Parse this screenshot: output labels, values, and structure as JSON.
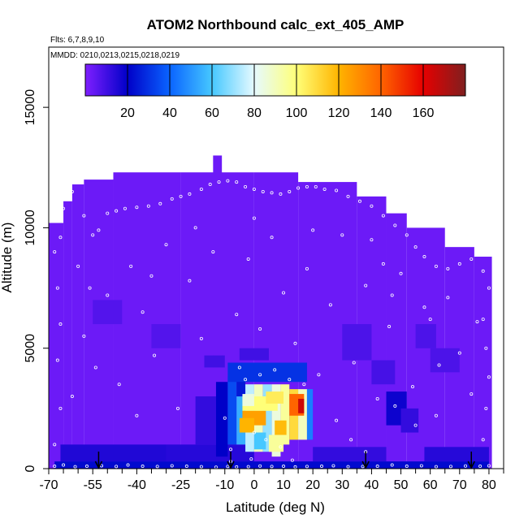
{
  "chart_data": {
    "type": "heatmap",
    "title": "ATOM2 Northbound calc_ext_405_AMP",
    "flights_note": "Flts: 6,7,8,9,10",
    "dates_note": "MMDD: 0210,0213,0215,0218,0219",
    "xlabel": "Latitude (deg N)",
    "ylabel": "Altitude (m)",
    "xlim": [
      -70,
      85
    ],
    "ylim": [
      0,
      17500
    ],
    "x_ticks": [
      -70,
      -55,
      -40,
      -25,
      -10,
      0,
      10,
      20,
      30,
      40,
      50,
      60,
      70,
      80
    ],
    "x_ticks_unlabeled": [
      -65,
      -60,
      -50,
      -45,
      -35,
      -30,
      -20,
      -15,
      -5,
      5,
      15,
      25,
      35,
      45,
      55,
      65,
      75,
      85
    ],
    "y_ticks": [
      0,
      5000,
      10000,
      15000
    ],
    "colorbar": {
      "min": 0,
      "max": 180,
      "ticks": [
        20,
        40,
        60,
        80,
        100,
        120,
        140,
        160
      ],
      "colors": [
        "#7f1fff",
        "#0000c8",
        "#0a64ff",
        "#46c8ff",
        "#e6faff",
        "#ffff78",
        "#ffb400",
        "#ff6400",
        "#e60000",
        "#7f1f1f"
      ]
    },
    "background_value": 3,
    "envelope": [
      {
        "lat": [
          -70,
          -65
        ],
        "top": 10200
      },
      {
        "lat": [
          -65,
          -62
        ],
        "top": 11100
      },
      {
        "lat": [
          -62,
          -58
        ],
        "top": 11800
      },
      {
        "lat": [
          -58,
          -48
        ],
        "top": 12000
      },
      {
        "lat": [
          -48,
          -25
        ],
        "top": 12300
      },
      {
        "lat": [
          -25,
          0
        ],
        "top": 12300
      },
      {
        "lat": [
          0,
          15
        ],
        "top": 12300
      },
      {
        "lat": [
          15,
          35
        ],
        "top": 11900
      },
      {
        "lat": [
          35,
          45
        ],
        "top": 11300
      },
      {
        "lat": [
          45,
          52
        ],
        "top": 10600
      },
      {
        "lat": [
          52,
          65
        ],
        "top": 10000
      },
      {
        "lat": [
          65,
          75
        ],
        "top": 9200
      },
      {
        "lat": [
          75,
          81
        ],
        "top": 8800
      }
    ],
    "summit": {
      "lat": [
        -14,
        -11
      ],
      "top": 13000
    },
    "cells": [
      {
        "lat": [
          -68,
          80
        ],
        "alt": [
          0,
          300
        ],
        "value": 22
      },
      {
        "lat": [
          -66,
          -30
        ],
        "alt": [
          300,
          1000
        ],
        "value": 15
      },
      {
        "lat": [
          -30,
          0
        ],
        "alt": [
          300,
          1000
        ],
        "value": 14
      },
      {
        "lat": [
          20,
          45
        ],
        "alt": [
          300,
          900
        ],
        "value": 12
      },
      {
        "lat": [
          58,
          80
        ],
        "alt": [
          300,
          900
        ],
        "value": 14
      },
      {
        "lat": [
          -20,
          -13
        ],
        "alt": [
          1000,
          3000
        ],
        "value": 12
      },
      {
        "lat": [
          -13,
          -9
        ],
        "alt": [
          500,
          3600
        ],
        "value": 20
      },
      {
        "lat": [
          -9,
          -6
        ],
        "alt": [
          1000,
          3800
        ],
        "value": 35
      },
      {
        "lat": [
          -6,
          -3
        ],
        "alt": [
          1000,
          3000
        ],
        "value": 55
      },
      {
        "lat": [
          -6,
          -3
        ],
        "alt": [
          3000,
          3800
        ],
        "value": 25
      },
      {
        "lat": [
          -3,
          0
        ],
        "alt": [
          700,
          3500
        ],
        "value": 75
      },
      {
        "lat": [
          0,
          3
        ],
        "alt": [
          700,
          3500
        ],
        "value": 90
      },
      {
        "lat": [
          3,
          6
        ],
        "alt": [
          700,
          3500
        ],
        "value": 70
      },
      {
        "lat": [
          6,
          9
        ],
        "alt": [
          500,
          3500
        ],
        "value": 85
      },
      {
        "lat": [
          9,
          12
        ],
        "alt": [
          1000,
          3500
        ],
        "value": 95
      },
      {
        "lat": [
          12,
          15
        ],
        "alt": [
          1200,
          3300
        ],
        "value": 110
      },
      {
        "lat": [
          15,
          18
        ],
        "alt": [
          1200,
          3300
        ],
        "value": 90
      },
      {
        "lat": [
          18,
          20
        ],
        "alt": [
          1200,
          3300
        ],
        "value": 45
      },
      {
        "lat": [
          -9,
          18
        ],
        "alt": [
          3600,
          4400
        ],
        "value": 30
      },
      {
        "lat": [
          -4,
          8
        ],
        "alt": [
          2400,
          3000
        ],
        "value": 100
      },
      {
        "lat": [
          -4,
          4
        ],
        "alt": [
          1800,
          2400
        ],
        "value": 125
      },
      {
        "lat": [
          4,
          10
        ],
        "alt": [
          2700,
          3200
        ],
        "value": 105
      },
      {
        "lat": [
          12,
          17
        ],
        "alt": [
          2200,
          3100
        ],
        "value": 140
      },
      {
        "lat": [
          15,
          17
        ],
        "alt": [
          2300,
          2900
        ],
        "value": 165
      },
      {
        "lat": [
          7,
          11
        ],
        "alt": [
          1400,
          2000
        ],
        "value": 118
      },
      {
        "lat": [
          5,
          10
        ],
        "alt": [
          700,
          1400
        ],
        "value": 95
      },
      {
        "lat": [
          -5,
          0
        ],
        "alt": [
          1500,
          2100
        ],
        "value": 120
      },
      {
        "lat": [
          0,
          4
        ],
        "alt": [
          800,
          1500
        ],
        "value": 60
      },
      {
        "lat": [
          -4,
          0
        ],
        "alt": [
          2600,
          3100
        ],
        "value": 85
      },
      {
        "lat": [
          -17,
          -10
        ],
        "alt": [
          4200,
          4700
        ],
        "value": 10
      },
      {
        "lat": [
          -5,
          5
        ],
        "alt": [
          4500,
          5000
        ],
        "value": 10
      },
      {
        "lat": [
          40,
          48
        ],
        "alt": [
          3500,
          4500
        ],
        "value": 9
      },
      {
        "lat": [
          45,
          52
        ],
        "alt": [
          1800,
          3200
        ],
        "value": 18
      },
      {
        "lat": [
          50,
          56
        ],
        "alt": [
          1500,
          2500
        ],
        "value": 12
      },
      {
        "lat": [
          60,
          70
        ],
        "alt": [
          4000,
          5000
        ],
        "value": 8
      },
      {
        "lat": [
          55,
          62
        ],
        "alt": [
          5000,
          6000
        ],
        "value": 8
      },
      {
        "lat": [
          30,
          40
        ],
        "alt": [
          4500,
          6000
        ],
        "value": 8
      },
      {
        "lat": [
          -35,
          -25
        ],
        "alt": [
          5000,
          6000
        ],
        "value": 7
      },
      {
        "lat": [
          -55,
          -45
        ],
        "alt": [
          6000,
          7000
        ],
        "value": 7
      }
    ],
    "sample_points": [
      [
        -68,
        100
      ],
      [
        -65,
        150
      ],
      [
        -61,
        80
      ],
      [
        -57,
        100
      ],
      [
        -52,
        120
      ],
      [
        -47,
        90
      ],
      [
        -43,
        150
      ],
      [
        -38,
        100
      ],
      [
        -33,
        90
      ],
      [
        -28,
        120
      ],
      [
        -23,
        100
      ],
      [
        -18,
        80
      ],
      [
        -13,
        60
      ],
      [
        -9,
        90
      ],
      [
        -6,
        70
      ],
      [
        -2,
        80
      ],
      [
        2,
        110
      ],
      [
        6,
        90
      ],
      [
        10,
        100
      ],
      [
        14,
        70
      ],
      [
        18,
        90
      ],
      [
        23,
        100
      ],
      [
        27,
        120
      ],
      [
        32,
        80
      ],
      [
        37,
        90
      ],
      [
        42,
        100
      ],
      [
        47,
        150
      ],
      [
        52,
        100
      ],
      [
        57,
        120
      ],
      [
        62,
        80
      ],
      [
        67,
        90
      ],
      [
        72,
        110
      ],
      [
        77,
        100
      ],
      [
        80,
        120
      ],
      [
        -68,
        1000
      ],
      [
        -66,
        2500
      ],
      [
        -67,
        4500
      ],
      [
        -66,
        6000
      ],
      [
        -67,
        7500
      ],
      [
        -68,
        9000
      ],
      [
        -66,
        9600
      ],
      [
        -65,
        10800
      ],
      [
        -62,
        11500
      ],
      [
        -60,
        11900
      ],
      [
        -58,
        10500
      ],
      [
        -55,
        9700
      ],
      [
        -53,
        9900
      ],
      [
        -50,
        10600
      ],
      [
        -47,
        10700
      ],
      [
        -44,
        10800
      ],
      [
        -40,
        10850
      ],
      [
        -36,
        10900
      ],
      [
        -32,
        11000
      ],
      [
        -28,
        11200
      ],
      [
        -25,
        11300
      ],
      [
        -22,
        11400
      ],
      [
        -18,
        11600
      ],
      [
        -15,
        11800
      ],
      [
        -12,
        11900
      ],
      [
        -9,
        11950
      ],
      [
        -6,
        11900
      ],
      [
        -3,
        11700
      ],
      [
        0,
        11600
      ],
      [
        3,
        11500
      ],
      [
        6,
        11450
      ],
      [
        9,
        11400
      ],
      [
        12,
        11500
      ],
      [
        15,
        11650
      ],
      [
        18,
        11700
      ],
      [
        21,
        11700
      ],
      [
        24,
        11600
      ],
      [
        28,
        11550
      ],
      [
        32,
        11300
      ],
      [
        36,
        11100
      ],
      [
        40,
        10900
      ],
      [
        44,
        10500
      ],
      [
        48,
        10100
      ],
      [
        52,
        9700
      ],
      [
        55,
        9200
      ],
      [
        58,
        8800
      ],
      [
        62,
        8400
      ],
      [
        66,
        8300
      ],
      [
        70,
        8500
      ],
      [
        74,
        8700
      ],
      [
        78,
        8200
      ],
      [
        80,
        7500
      ],
      [
        78,
        6200
      ],
      [
        79,
        5000
      ],
      [
        80,
        3800
      ],
      [
        79,
        2500
      ],
      [
        78,
        1200
      ],
      [
        -62,
        3000
      ],
      [
        -58,
        5500
      ],
      [
        -54,
        4200
      ],
      [
        -50,
        7200
      ],
      [
        -46,
        3500
      ],
      [
        -42,
        8400
      ],
      [
        -38,
        6500
      ],
      [
        -34,
        4700
      ],
      [
        -30,
        9300
      ],
      [
        -26,
        2500
      ],
      [
        -22,
        7800
      ],
      [
        -18,
        5400
      ],
      [
        -14,
        9000
      ],
      [
        -10,
        2100
      ],
      [
        -6,
        6400
      ],
      [
        -2,
        8700
      ],
      [
        2,
        5800
      ],
      [
        6,
        9600
      ],
      [
        10,
        7300
      ],
      [
        14,
        5200
      ],
      [
        18,
        8300
      ],
      [
        22,
        3900
      ],
      [
        26,
        6800
      ],
      [
        30,
        9700
      ],
      [
        34,
        4400
      ],
      [
        38,
        7600
      ],
      [
        42,
        2900
      ],
      [
        46,
        5900
      ],
      [
        50,
        8100
      ],
      [
        54,
        3400
      ],
      [
        58,
        6700
      ],
      [
        62,
        2200
      ],
      [
        66,
        7100
      ],
      [
        70,
        4800
      ],
      [
        74,
        3100
      ],
      [
        76,
        6100
      ],
      [
        -5,
        4200
      ],
      [
        -3,
        3700
      ],
      [
        2,
        3900
      ],
      [
        7,
        4100
      ],
      [
        12,
        3700
      ],
      [
        17,
        3500
      ],
      [
        0,
        1500
      ],
      [
        4,
        1200
      ],
      [
        9,
        900
      ],
      [
        -8,
        800
      ],
      [
        -8,
        300
      ],
      [
        -1,
        400
      ],
      [
        13,
        350
      ],
      [
        38,
        700
      ],
      [
        55,
        1800
      ],
      [
        48,
        2600
      ],
      [
        63,
        4300
      ],
      [
        28,
        2000
      ],
      [
        33,
        1200
      ],
      [
        -40,
        2200
      ],
      [
        -56,
        7500
      ],
      [
        -35,
        8000
      ],
      [
        -20,
        10000
      ],
      [
        0,
        10400
      ],
      [
        20,
        9900
      ],
      [
        40,
        9500
      ],
      [
        60,
        6200
      ],
      [
        -60,
        8400
      ],
      [
        44,
        8500
      ],
      [
        47,
        7200
      ]
    ],
    "arrows": [
      -53,
      -8,
      38,
      74
    ]
  }
}
